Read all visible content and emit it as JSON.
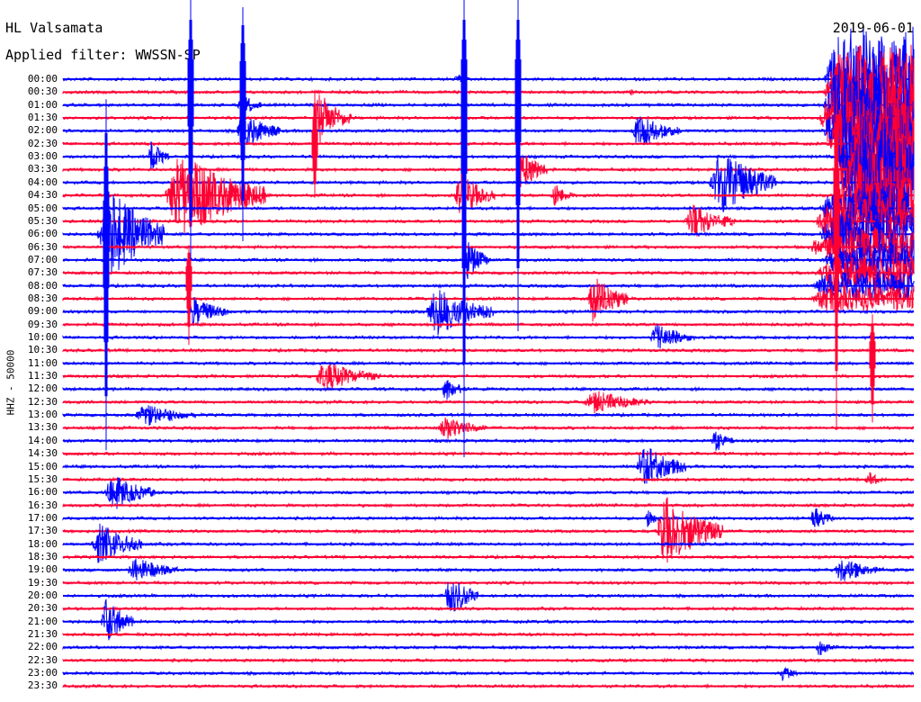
{
  "header": {
    "station": "HL Valsamata",
    "filter": "Applied filter: WWSSN-SP",
    "date": "2019-06-01"
  },
  "axis": {
    "y_label": "HHZ - 50000"
  },
  "trace_colors": [
    "#0000ff",
    "#ff0033"
  ],
  "time_labels": [
    "00:00",
    "00:30",
    "01:00",
    "01:30",
    "02:00",
    "02:30",
    "03:00",
    "03:30",
    "04:00",
    "04:30",
    "05:00",
    "05:30",
    "06:00",
    "06:30",
    "07:00",
    "07:30",
    "08:00",
    "08:30",
    "09:00",
    "09:30",
    "10:00",
    "10:30",
    "11:00",
    "11:30",
    "12:00",
    "12:30",
    "13:00",
    "13:30",
    "14:00",
    "14:30",
    "15:00",
    "15:30",
    "16:00",
    "16:30",
    "17:00",
    "17:30",
    "18:00",
    "18:30",
    "19:00",
    "19:30",
    "20:00",
    "20:30",
    "21:00",
    "21:30",
    "22:00",
    "22:30",
    "23:00",
    "23:30"
  ]
}
